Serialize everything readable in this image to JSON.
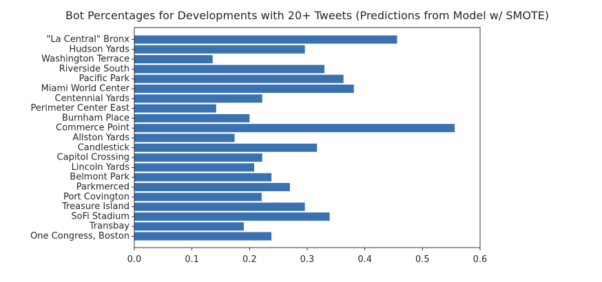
{
  "chart_data": {
    "type": "bar",
    "orientation": "horizontal",
    "title": "Bot Percentages for Developments with 20+ Tweets (Predictions from Model w/ SMOTE)",
    "xlabel": "",
    "ylabel": "",
    "xlim": [
      0.0,
      0.6
    ],
    "xticks": [
      "0.0",
      "0.1",
      "0.2",
      "0.3",
      "0.4",
      "0.5",
      "0.6"
    ],
    "bar_color": "#3a72b1",
    "grid": false,
    "categories": [
      "\"La Central\" Bronx",
      "Hudson Yards",
      "Washington Terrace",
      "Riverside South",
      "Pacific Park",
      "Miami World Center",
      "Centennial Yards",
      "Perimeter Center East",
      "Burnham Place",
      "Commerce Point",
      "Allston Yards",
      "Candlestick",
      "Capitol Crossing",
      "Lincoln Yards",
      "Belmont Park",
      "Parkmerced",
      "Port Covington",
      "Treasure Island",
      "SoFi Stadium",
      "Transbay",
      "One Congress, Boston"
    ],
    "values": [
      0.456,
      0.296,
      0.136,
      0.33,
      0.363,
      0.381,
      0.222,
      0.142,
      0.2,
      0.556,
      0.174,
      0.317,
      0.222,
      0.208,
      0.238,
      0.27,
      0.221,
      0.296,
      0.339,
      0.19,
      0.238
    ]
  }
}
